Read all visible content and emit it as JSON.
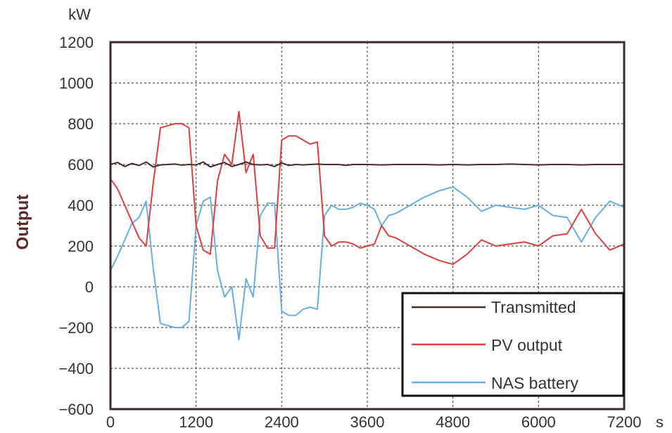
{
  "chart_data": {
    "type": "line",
    "title": "",
    "xlabel": "",
    "ylabel": "Output",
    "y_unit": "kW",
    "x_unit": "s",
    "xlim": [
      0,
      7200
    ],
    "ylim": [
      -600,
      1200
    ],
    "xticks": [
      0,
      1200,
      2400,
      3600,
      4800,
      6000,
      7200
    ],
    "yticks": [
      -600,
      -400,
      -200,
      0,
      200,
      400,
      600,
      800,
      1000,
      1200
    ],
    "xtick_labels": [
      "0",
      "1200",
      "2400",
      "3600",
      "4800",
      "6000",
      "7200"
    ],
    "ytick_labels": [
      "−600",
      "−400",
      "−200",
      "0",
      "200",
      "400",
      "600",
      "800",
      "1000",
      "1200"
    ],
    "grid": true,
    "legend_position": "bottom-right",
    "series": [
      {
        "name": "Transmitted",
        "color": "#4a2a2a",
        "x": [
          0,
          100,
          200,
          300,
          400,
          500,
          600,
          700,
          800,
          900,
          1000,
          1100,
          1200,
          1300,
          1400,
          1500,
          1600,
          1700,
          1800,
          1900,
          2000,
          2100,
          2200,
          2300,
          2400,
          2500,
          2600,
          2700,
          2800,
          2900,
          3000,
          3100,
          3200,
          3300,
          3400,
          3500,
          3600,
          3800,
          4000,
          4200,
          4400,
          4600,
          4800,
          5000,
          5200,
          5400,
          5600,
          5800,
          6000,
          6200,
          6400,
          6600,
          6800,
          7000,
          7200
        ],
        "values": [
          600,
          610,
          590,
          605,
          595,
          612,
          588,
          598,
          600,
          602,
          597,
          600,
          598,
          612,
          588,
          600,
          610,
          590,
          600,
          612,
          600,
          598,
          600,
          590,
          608,
          595,
          600,
          598,
          600,
          602,
          600,
          600,
          600,
          596,
          600,
          600,
          600,
          598,
          600,
          600,
          600,
          598,
          600,
          598,
          600,
          600,
          602,
          600,
          598,
          600,
          600,
          598,
          600,
          600,
          600
        ]
      },
      {
        "name": "PV output",
        "color": "#d94141",
        "x": [
          0,
          100,
          200,
          300,
          400,
          500,
          600,
          700,
          800,
          900,
          1000,
          1100,
          1200,
          1300,
          1400,
          1500,
          1600,
          1700,
          1800,
          1900,
          2000,
          2100,
          2200,
          2300,
          2400,
          2500,
          2600,
          2700,
          2800,
          2900,
          3000,
          3100,
          3200,
          3300,
          3400,
          3500,
          3600,
          3700,
          3800,
          3900,
          4000,
          4200,
          4400,
          4600,
          4800,
          5000,
          5200,
          5400,
          5600,
          5800,
          6000,
          6200,
          6400,
          6600,
          6800,
          7000,
          7200
        ],
        "values": [
          530,
          480,
          400,
          320,
          240,
          200,
          510,
          780,
          790,
          800,
          800,
          780,
          300,
          180,
          160,
          520,
          650,
          600,
          860,
          560,
          650,
          250,
          190,
          190,
          720,
          740,
          740,
          720,
          700,
          710,
          250,
          200,
          220,
          220,
          210,
          190,
          200,
          210,
          300,
          250,
          240,
          200,
          160,
          130,
          110,
          160,
          230,
          200,
          210,
          220,
          200,
          250,
          260,
          380,
          260,
          180,
          210
        ]
      },
      {
        "name": "NAS battery",
        "color": "#6aaee0",
        "x": [
          0,
          100,
          200,
          300,
          400,
          500,
          600,
          700,
          800,
          900,
          1000,
          1100,
          1200,
          1300,
          1400,
          1500,
          1600,
          1700,
          1800,
          1900,
          2000,
          2100,
          2200,
          2300,
          2400,
          2500,
          2600,
          2700,
          2800,
          2900,
          3000,
          3100,
          3200,
          3300,
          3400,
          3500,
          3600,
          3700,
          3800,
          3900,
          4000,
          4200,
          4400,
          4600,
          4800,
          5000,
          5200,
          5400,
          5600,
          5800,
          6000,
          6200,
          6400,
          6600,
          6800,
          7000,
          7200
        ],
        "values": [
          80,
          150,
          230,
          310,
          340,
          420,
          90,
          -180,
          -190,
          -200,
          -200,
          -170,
          300,
          420,
          440,
          80,
          -50,
          0,
          -260,
          40,
          -50,
          350,
          410,
          410,
          -120,
          -140,
          -140,
          -110,
          -100,
          -110,
          350,
          400,
          380,
          380,
          390,
          410,
          400,
          380,
          300,
          350,
          360,
          400,
          440,
          470,
          490,
          440,
          370,
          400,
          390,
          380,
          400,
          350,
          340,
          220,
          340,
          420,
          390
        ]
      }
    ]
  }
}
